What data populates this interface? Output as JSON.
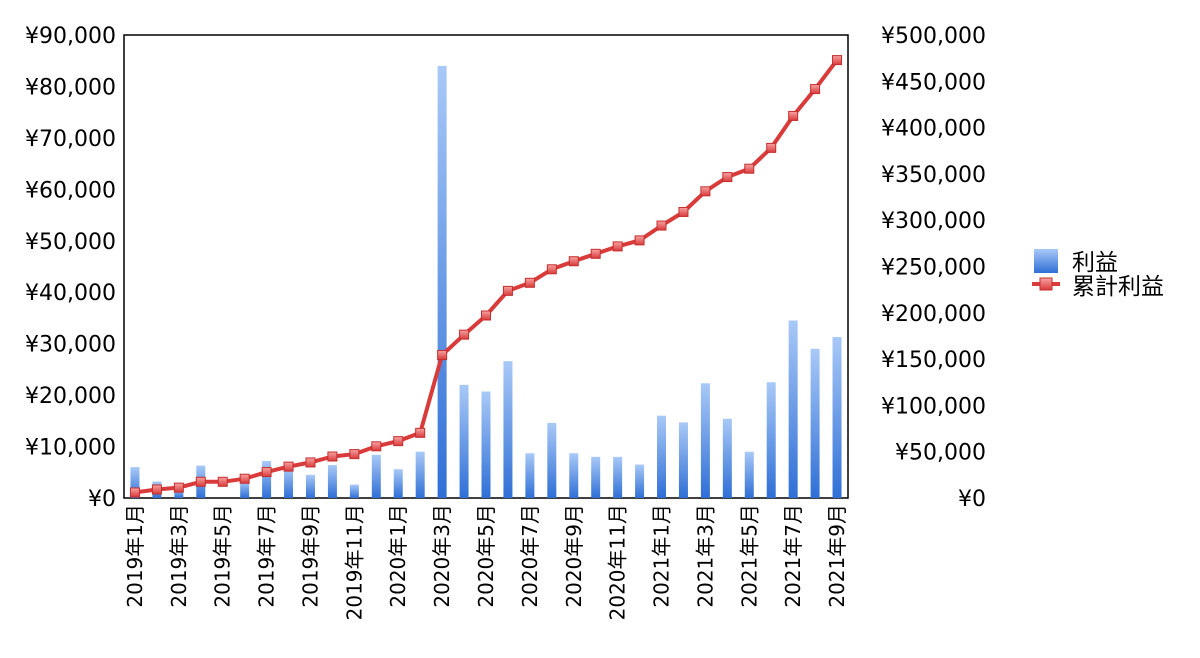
{
  "chart_data": {
    "type": "bar+line",
    "title": "",
    "grid": false,
    "legend_position": "right",
    "x": [
      "2019年1月",
      "2019年2月",
      "2019年3月",
      "2019年4月",
      "2019年5月",
      "2019年6月",
      "2019年7月",
      "2019年8月",
      "2019年9月",
      "2019年10月",
      "2019年11月",
      "2019年12月",
      "2020年1月",
      "2020年2月",
      "2020年3月",
      "2020年4月",
      "2020年5月",
      "2020年6月",
      "2020年7月",
      "2020年8月",
      "2020年9月",
      "2020年10月",
      "2020年11月",
      "2020年12月",
      "2021年1月",
      "2021年2月",
      "2021年3月",
      "2021年4月",
      "2021年5月",
      "2021年6月",
      "2021年7月",
      "2021年8月",
      "2021年9月"
    ],
    "x_tick_labels": [
      "2019年1月",
      "2019年3月",
      "2019年5月",
      "2019年7月",
      "2019年9月",
      "2019年11月",
      "2020年1月",
      "2020年3月",
      "2020年5月",
      "2020年7月",
      "2020年9月",
      "2020年11月",
      "2021年1月",
      "2021年3月",
      "2021年5月",
      "2021年7月",
      "2021年9月"
    ],
    "y_left": {
      "ylim": [
        0,
        90000
      ],
      "tick_values": [
        0,
        10000,
        20000,
        30000,
        40000,
        50000,
        60000,
        70000,
        80000,
        90000
      ],
      "tick_labels": [
        "¥0",
        "¥10,000",
        "¥20,000",
        "¥30,000",
        "¥40,000",
        "¥50,000",
        "¥60,000",
        "¥70,000",
        "¥80,000",
        "¥90,000"
      ]
    },
    "y_right": {
      "ylim": [
        0,
        500000
      ],
      "tick_values": [
        0,
        50000,
        100000,
        150000,
        200000,
        250000,
        300000,
        350000,
        400000,
        450000,
        500000
      ],
      "tick_labels": [
        "¥0",
        "¥50,000",
        "¥100,000",
        "¥150,000",
        "¥200,000",
        "¥250,000",
        "¥300,000",
        "¥350,000",
        "¥400,000",
        "¥450,000",
        "¥500,000"
      ]
    },
    "series": [
      {
        "name": "利益",
        "type": "bar",
        "axis": "left",
        "color": "#3b7de0",
        "values": [
          6000,
          3200,
          2000,
          6300,
          0,
          3300,
          7200,
          5900,
          4500,
          6400,
          2600,
          8400,
          5600,
          9000,
          84000,
          22000,
          20700,
          26600,
          8700,
          14600,
          8700,
          8000,
          8000,
          6500,
          16000,
          14700,
          22300,
          15400,
          9000,
          22500,
          34500,
          29000,
          31300
        ]
      },
      {
        "name": "累計利益",
        "type": "line",
        "axis": "right",
        "color": "#d93a3a",
        "values": [
          6000,
          9200,
          11200,
          17500,
          17500,
          20800,
          28000,
          33900,
          38400,
          44800,
          47400,
          55800,
          61400,
          70400,
          154400,
          176400,
          197100,
          223700,
          232400,
          247000,
          255700,
          263700,
          271700,
          278200,
          294200,
          308900,
          331200,
          346600,
          355600,
          378100,
          412600,
          441600,
          472900
        ]
      }
    ]
  }
}
